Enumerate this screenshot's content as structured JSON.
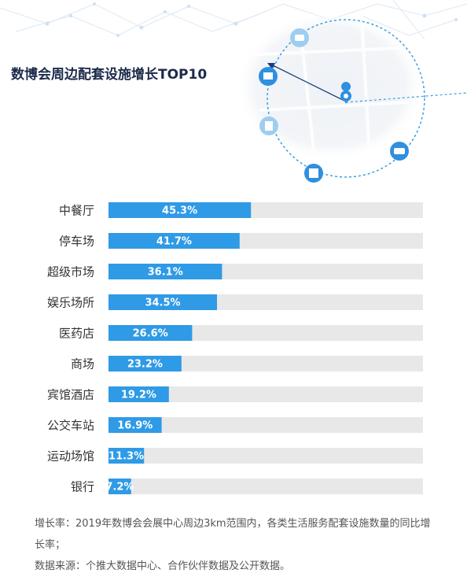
{
  "chart_data": {
    "type": "bar",
    "orientation": "horizontal",
    "title": "数博会周边配套设施增长TOP10",
    "categories": [
      "中餐厅",
      "停车场",
      "超级市场",
      "娱乐场所",
      "医药店",
      "商场",
      "宾馆酒店",
      "公交车站",
      "运动场馆",
      "银行"
    ],
    "values": [
      45.3,
      41.7,
      36.1,
      34.5,
      26.6,
      23.2,
      19.2,
      16.9,
      11.3,
      7.2
    ],
    "value_labels": [
      "45.3%",
      "41.7%",
      "36.1%",
      "34.5%",
      "26.6%",
      "23.2%",
      "19.2%",
      "16.9%",
      "11.3%",
      "7.2%"
    ],
    "xlim": [
      0,
      100
    ],
    "color": "#2f9ae6",
    "track_color": "#e8e8e8"
  },
  "notes": [
    "增长率：2019年数博会会展中心周边3km范围内，各类生活服务配套设施数量的同比增长率；",
    "数据来源：个推大数据中心、合作伙伴数据及公开数据。"
  ]
}
